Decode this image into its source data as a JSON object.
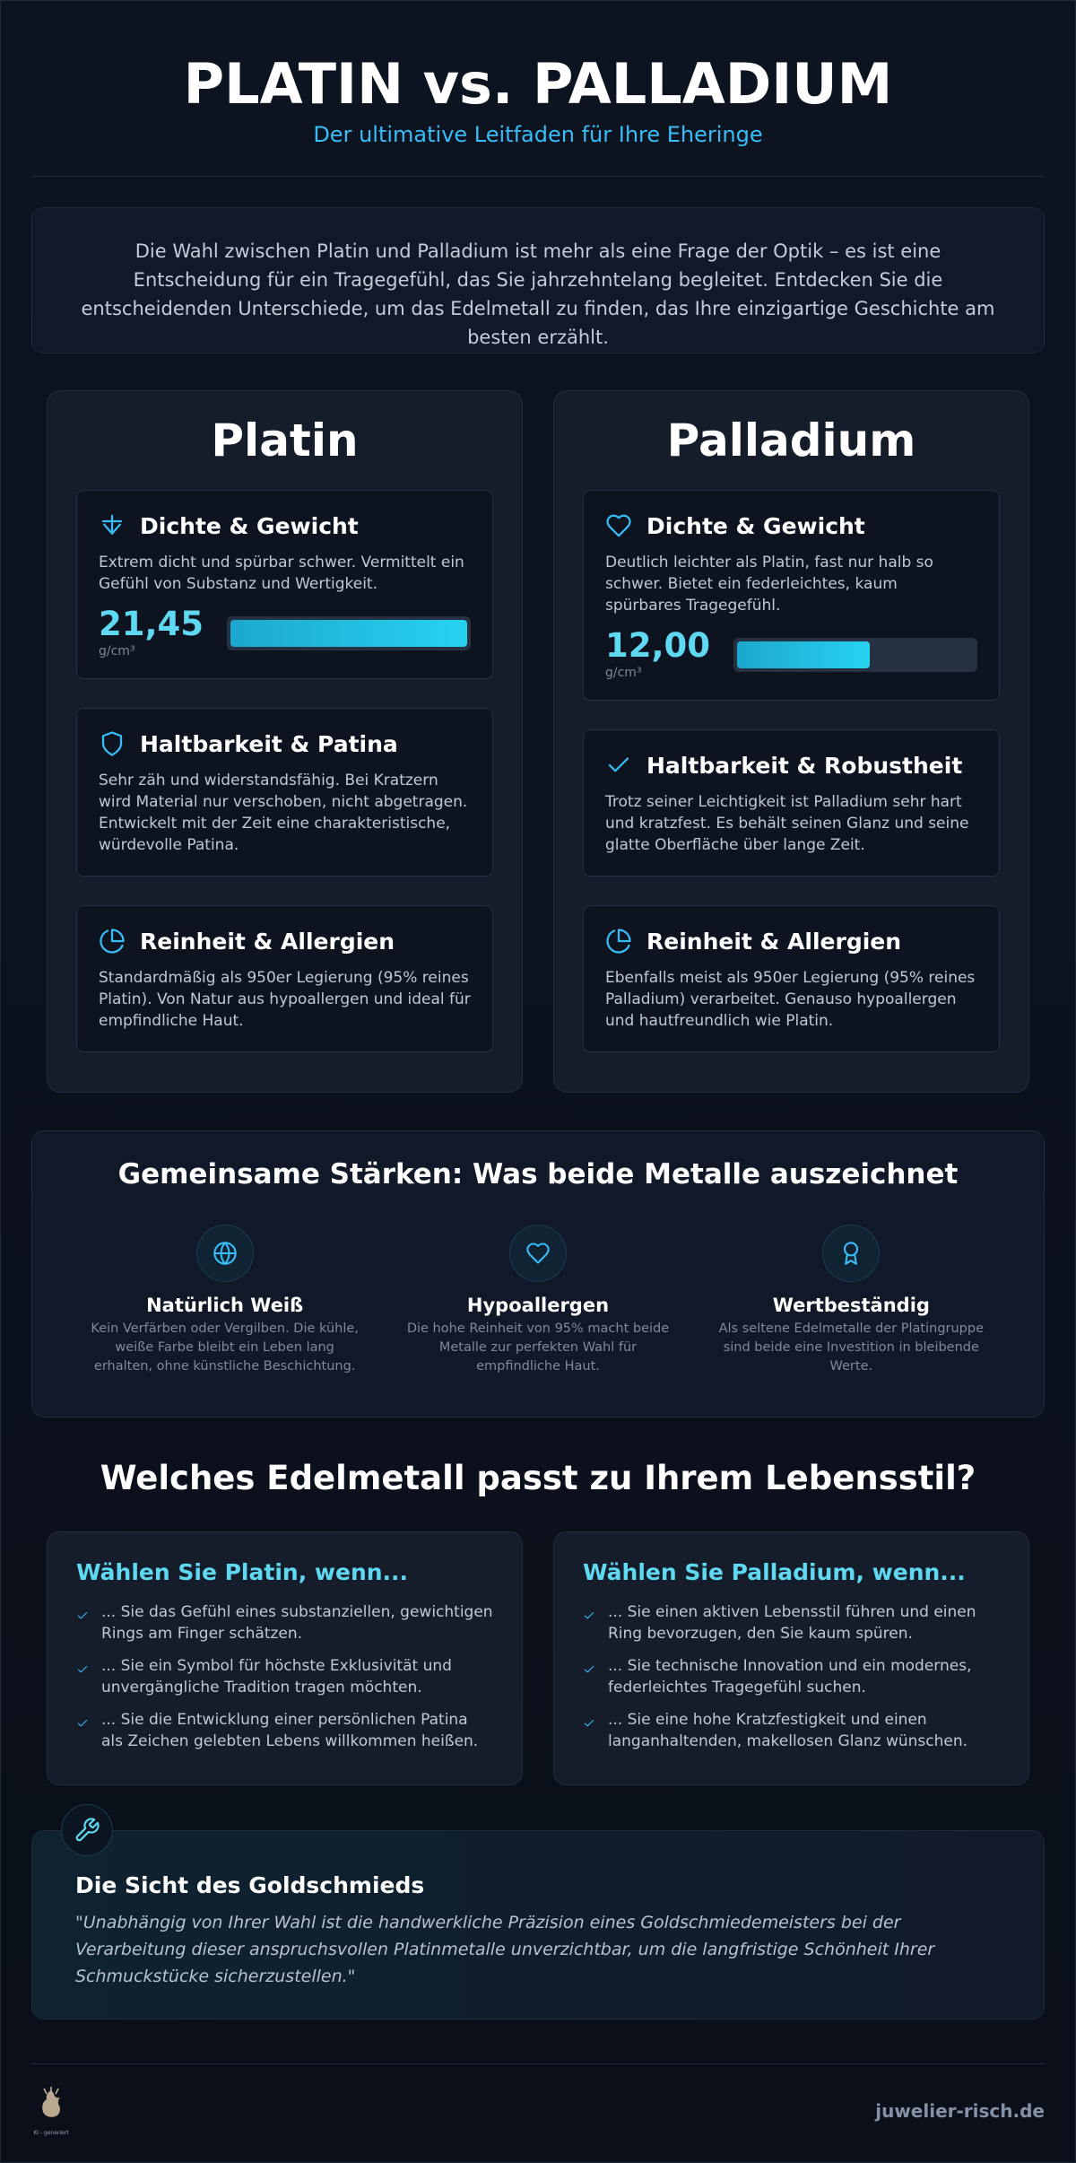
{
  "header": {
    "title": "PLATIN vs. PALLADIUM",
    "subtitle": "Der ultimative Leitfaden für Ihre Eheringe"
  },
  "intro": "Die Wahl zwischen Platin und Palladium ist mehr als eine Frage der Optik – es ist eine Entscheidung für ein Tragegefühl, das Sie jahrzehntelang begleitet. Entdecken Sie die entscheidenden Unterschiede, um das Edelmetall zu finden, das Ihre einzigartige Geschichte am besten erzählt.",
  "metals": [
    {
      "name": "Platin",
      "features": [
        {
          "title": "Dichte & Gewicht",
          "text": "Extrem dicht und spürbar schwer. Vermittelt ein Gefühl von Substanz und Wertigkeit.",
          "density": {
            "value": 21.45,
            "label": "21,45",
            "unit": "g/cm³"
          }
        },
        {
          "title": "Haltbarkeit & Patina",
          "text": "Sehr zäh und widerstandsfähig. Bei Kratzern wird Material nur verschoben, nicht abgetragen. Entwickelt mit der Zeit eine charakteristische, würdevolle Patina."
        },
        {
          "title": "Reinheit & Allergien",
          "text": "Standardmäßig als 950er Legierung (95% reines Platin). Von Natur aus hypoallergen und ideal für empfindliche Haut."
        }
      ]
    },
    {
      "name": "Palladium",
      "features": [
        {
          "title": "Dichte & Gewicht",
          "text": "Deutlich leichter als Platin, fast nur halb so schwer. Bietet ein federleichtes, kaum spürbares Tragegefühl.",
          "density": {
            "value": 12.0,
            "label": "12,00",
            "unit": "g/cm³"
          }
        },
        {
          "title": "Haltbarkeit & Robustheit",
          "text": "Trotz seiner Leichtigkeit ist Palladium sehr hart und kratzfest. Es behält seinen Glanz und seine glatte Oberfläche über lange Zeit."
        },
        {
          "title": "Reinheit & Allergien",
          "text": "Ebenfalls meist als 950er Legierung (95% reines Palladium) verarbeitet. Genauso hypoallergen und hautfreundlich wie Platin."
        }
      ]
    }
  ],
  "shared": {
    "title": "Gemeinsame Stärken: Was beide Metalle auszeichnet",
    "items": [
      {
        "title": "Natürlich Weiß",
        "text": "Kein Verfärben oder Vergilben. Die kühle, weiße Farbe bleibt ein Leben lang erhalten, ohne künstliche Beschichtung."
      },
      {
        "title": "Hypoallergen",
        "text": "Die hohe Reinheit von 95% macht beide Metalle zur perfekten Wahl für empfindliche Haut."
      },
      {
        "title": "Wertbeständig",
        "text": "Als seltene Edelmetalle der Platingruppe sind beide eine Investition in bleibende Werte."
      }
    ]
  },
  "lifestyle": {
    "title": "Welches Edelmetall passt zu Ihrem Lebensstil?",
    "choices": [
      {
        "title": "Wählen Sie Platin, wenn...",
        "items": [
          "... Sie das Gefühl eines substanziellen, gewichtigen Rings am Finger schätzen.",
          "... Sie ein Symbol für höchste Exklusivität und unvergängliche Tradition tragen möchten.",
          "... Sie die Entwicklung einer persönlichen Patina als Zeichen gelebten Lebens willkommen heißen."
        ]
      },
      {
        "title": "Wählen Sie Palladium, wenn...",
        "items": [
          "... Sie einen aktiven Lebensstil führen und einen Ring bevorzugen, den Sie kaum spüren.",
          "... Sie technische Innovation und ein modernes, federleichtes Tragegefühl suchen.",
          "... Sie eine hohe Kratzfestigkeit und einen langanhaltenden, makellosen Glanz wünschen."
        ]
      }
    ]
  },
  "quote": {
    "title": "Die Sicht des Goldschmieds",
    "text": "\"Unabhängig von Ihrer Wahl ist die handwerkliche Präzision eines Goldschmiedemeisters bei der Verarbeitung dieser anspruchsvollen Platinmetalle unverzichtbar, um die langfristige Schönheit Ihrer Schmuckstücke sicherzustellen.\""
  },
  "footer": {
    "logo_caption": "KI - generiert",
    "site": "juwelier-risch.de"
  }
}
